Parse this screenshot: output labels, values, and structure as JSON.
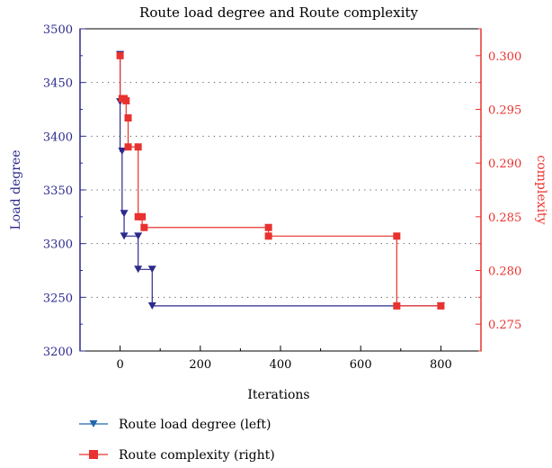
{
  "chart_data": {
    "type": "line",
    "title": "Route load degree and Route complexity",
    "xlabel": "Iterations",
    "ylabel_left": "Load degree",
    "ylabel_right": "complexity",
    "xlim": [
      -100,
      900
    ],
    "x_ticks": [
      0,
      200,
      400,
      600,
      800
    ],
    "ylim_left": [
      3200,
      3500
    ],
    "y_ticks_left": [
      3200,
      3250,
      3300,
      3350,
      3400,
      3450,
      3500
    ],
    "ylim_right": [
      0.2725,
      0.3025
    ],
    "y_ticks_right": [
      0.275,
      0.28,
      0.285,
      0.29,
      0.295,
      0.3
    ],
    "grid": "horizontal-dotted",
    "legend_position": "bottom-left",
    "colors": {
      "left_axis": "#2d2a8c",
      "right_axis": "#e8322f"
    },
    "series": [
      {
        "name": "Route load degree (left)",
        "axis": "left",
        "color": "#2d2a8c",
        "marker": "triangle-down",
        "step": true,
        "x": [
          0,
          0,
          5,
          10,
          10,
          45,
          45,
          80,
          800
        ],
        "y": [
          3476,
          3432,
          3386,
          3328,
          3307,
          3307,
          3276,
          3276,
          3242
        ],
        "markers": [
          [
            0,
            3476
          ],
          [
            0,
            3432
          ],
          [
            5,
            3386
          ],
          [
            10,
            3328
          ],
          [
            10,
            3307
          ],
          [
            45,
            3307
          ],
          [
            45,
            3276
          ],
          [
            80,
            3276
          ],
          [
            80,
            3242
          ],
          [
            800,
            3242
          ]
        ]
      },
      {
        "name": "Route complexity (right)",
        "axis": "right",
        "color": "#e8322f",
        "marker": "square",
        "step": true,
        "x": [
          0,
          5,
          10,
          15,
          20,
          45,
          45,
          55,
          60,
          370,
          370,
          690,
          690,
          800
        ],
        "y": [
          0.3,
          0.296,
          0.2958,
          0.2958,
          0.2942,
          0.2915,
          0.285,
          0.285,
          0.284,
          0.284,
          0.2832,
          0.2832,
          0.2767,
          0.2767
        ],
        "markers": [
          [
            0,
            0.3
          ],
          [
            5,
            0.296
          ],
          [
            10,
            0.296
          ],
          [
            15,
            0.2958
          ],
          [
            20,
            0.2942
          ],
          [
            20,
            0.2915
          ],
          [
            45,
            0.2915
          ],
          [
            45,
            0.285
          ],
          [
            55,
            0.285
          ],
          [
            60,
            0.284
          ],
          [
            370,
            0.284
          ],
          [
            370,
            0.2832
          ],
          [
            690,
            0.2832
          ],
          [
            690,
            0.2767
          ],
          [
            800,
            0.2767
          ]
        ]
      }
    ]
  }
}
